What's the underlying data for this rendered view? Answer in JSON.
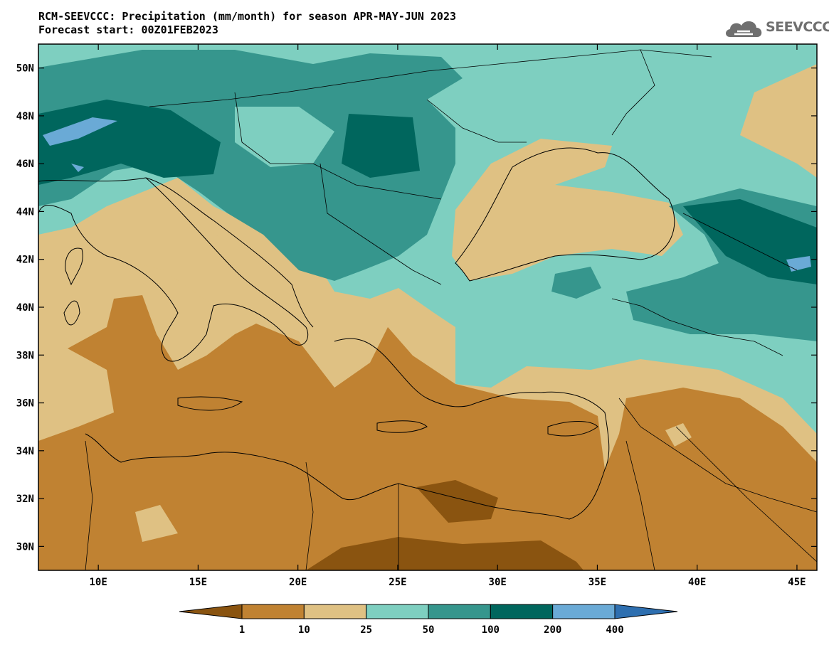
{
  "header": {
    "title_line1": "RCM-SEEVCCC: Precipitation (mm/month) for season APR-MAY-JUN 2023",
    "title_line2": "Forecast start: 00Z01FEB2023"
  },
  "logo": {
    "text": "SEEVCCC",
    "icon": "cloud-icon",
    "color": "#6f6f6f"
  },
  "map": {
    "lon_range": [
      7,
      46
    ],
    "lat_range": [
      29,
      51
    ],
    "lon_ticks": [
      {
        "value": 10,
        "label": "10E"
      },
      {
        "value": 15,
        "label": "15E"
      },
      {
        "value": 20,
        "label": "20E"
      },
      {
        "value": 25,
        "label": "25E"
      },
      {
        "value": 30,
        "label": "30E"
      },
      {
        "value": 35,
        "label": "35E"
      },
      {
        "value": 40,
        "label": "40E"
      },
      {
        "value": 45,
        "label": "45E"
      }
    ],
    "lat_ticks": [
      {
        "value": 30,
        "label": "30N"
      },
      {
        "value": 32,
        "label": "32N"
      },
      {
        "value": 34,
        "label": "34N"
      },
      {
        "value": 36,
        "label": "36N"
      },
      {
        "value": 38,
        "label": "38N"
      },
      {
        "value": 40,
        "label": "40N"
      },
      {
        "value": 42,
        "label": "42N"
      },
      {
        "value": 44,
        "label": "44N"
      },
      {
        "value": 46,
        "label": "46N"
      },
      {
        "value": 48,
        "label": "48N"
      },
      {
        "value": 50,
        "label": "50N"
      }
    ]
  },
  "colorbar": {
    "colors": [
      "#8a5410",
      "#c08232",
      "#dfc183",
      "#7ecfc0",
      "#36968d",
      "#00665d",
      "#6aaad6",
      "#2e6fb0"
    ],
    "labels": [
      "1",
      "10",
      "25",
      "50",
      "100",
      "200",
      "400"
    ]
  }
}
